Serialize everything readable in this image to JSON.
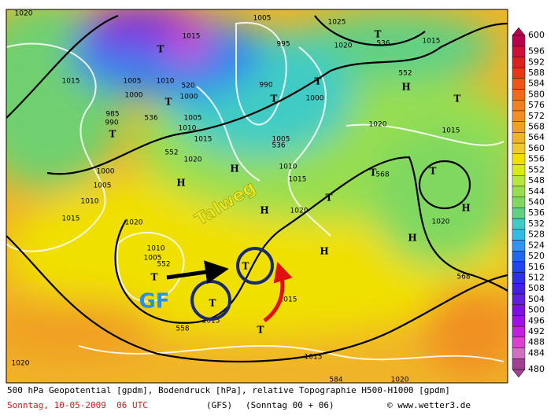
{
  "legend": {
    "values": [
      600,
      596,
      592,
      588,
      584,
      580,
      576,
      572,
      568,
      564,
      560,
      556,
      552,
      548,
      544,
      540,
      536,
      532,
      528,
      524,
      520,
      516,
      512,
      508,
      504,
      500,
      496,
      492,
      488,
      484,
      480
    ],
    "colors": [
      "#b8004c",
      "#cc1038",
      "#dc2020",
      "#ec3414",
      "#f05414",
      "#f06c14",
      "#f08020",
      "#f09024",
      "#f0a024",
      "#f0b428",
      "#f0c830",
      "#f0e000",
      "#d8ec10",
      "#b8e640",
      "#98de50",
      "#80d860",
      "#60d084",
      "#40ccc4",
      "#30bce4",
      "#3094f0",
      "#2068f0",
      "#2044f0",
      "#3030e4",
      "#4420e0",
      "#6020e0",
      "#8010e0",
      "#a010e0",
      "#c020e0",
      "#e040d0",
      "#d070c0",
      "#a04090"
    ]
  },
  "map_labels": [
    "1020",
    "1005",
    "1025",
    "T",
    "536",
    "1020",
    "1015",
    "1015",
    "T",
    "995",
    "1015",
    "1005",
    "1010",
    "520",
    "990",
    "1000",
    "T",
    "1000",
    "T",
    "1000",
    "T",
    "552",
    "H",
    "T",
    "985",
    "536",
    "990",
    "1005",
    "T",
    "1010",
    "1015",
    "1005",
    "536",
    "1020",
    "1015",
    "552",
    "1020",
    "H",
    "1010",
    "1000",
    "T",
    "568",
    "T",
    "H",
    "1015",
    "1005",
    "T",
    "1010",
    "H",
    "1020",
    "H",
    "1015",
    "1020",
    "1020",
    "H",
    "1010",
    "H",
    "1005",
    "T",
    "552",
    "T",
    "568",
    "1015",
    "T",
    "1015",
    "558",
    "T",
    "1020",
    "1015",
    "584",
    "1020"
  ],
  "annotations": {
    "trough": "Talweg",
    "cutoff": "GF"
  },
  "footer": {
    "line1": "500 hPa Geopotential [gpdm], Bodendruck [hPa], relative Topographie H500-H1000 [gpdm]",
    "date": "Sonntag, 10-05-2009  06 UTC",
    "model": "(GFS)",
    "run": "(Sonntag 00 + 06)",
    "source": "© www.wetter3.de"
  }
}
